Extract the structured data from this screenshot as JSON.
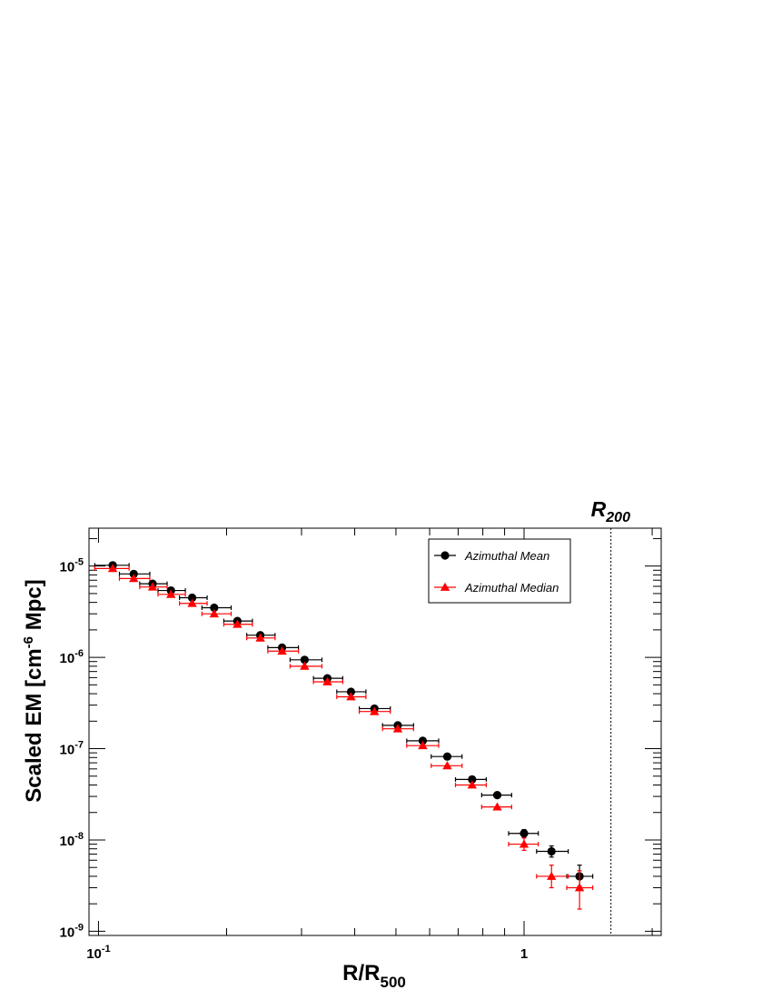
{
  "chart_data": {
    "type": "scatter",
    "xlabel": {
      "main": "R/R",
      "sub": "500"
    },
    "ylabel": {
      "pre": "Scaled EM [cm",
      "sup": "-6",
      "post": " Mpc]"
    },
    "xscale": "log",
    "yscale": "log",
    "xlim": [
      0.095,
      2.1
    ],
    "ylim": [
      9e-10,
      2.6e-05
    ],
    "grid": false,
    "legend_position": "top-right",
    "x_tick_labels": [
      {
        "value": 0.1,
        "base": "10",
        "exp": "-1"
      },
      {
        "value": 1,
        "base": "1",
        "exp": ""
      }
    ],
    "y_tick_labels": [
      {
        "value": 1e-05,
        "base": "10",
        "exp": "-5"
      },
      {
        "value": 1e-06,
        "base": "10",
        "exp": "-6"
      },
      {
        "value": 1e-07,
        "base": "10",
        "exp": "-7"
      },
      {
        "value": 1e-08,
        "base": "10",
        "exp": "-8"
      },
      {
        "value": 1e-09,
        "base": "10",
        "exp": "-9"
      }
    ],
    "vertical_line": {
      "x": 1.6,
      "label": {
        "main": "R",
        "sub": "200"
      },
      "style": "dotted"
    },
    "series": [
      {
        "name": "Azimuthal Mean",
        "color": "#000000",
        "marker": "circle",
        "points": [
          {
            "x": 0.108,
            "y": 1.02e-05,
            "xerr": [
              0.098,
              0.118
            ]
          },
          {
            "x": 0.121,
            "y": 8.2e-06,
            "xerr": [
              0.112,
              0.132
            ]
          },
          {
            "x": 0.134,
            "y": 6.4e-06,
            "xerr": [
              0.125,
              0.145
            ]
          },
          {
            "x": 0.148,
            "y": 5.4e-06,
            "xerr": [
              0.138,
              0.16
            ]
          },
          {
            "x": 0.166,
            "y": 4.5e-06,
            "xerr": [
              0.155,
              0.18
            ]
          },
          {
            "x": 0.187,
            "y": 3.5e-06,
            "xerr": [
              0.175,
              0.205
            ]
          },
          {
            "x": 0.212,
            "y": 2.5e-06,
            "xerr": [
              0.197,
              0.23
            ]
          },
          {
            "x": 0.24,
            "y": 1.75e-06,
            "xerr": [
              0.223,
              0.26
            ]
          },
          {
            "x": 0.27,
            "y": 1.28e-06,
            "xerr": [
              0.25,
              0.295
            ]
          },
          {
            "x": 0.305,
            "y": 9.4e-07,
            "xerr": [
              0.282,
              0.335
            ]
          },
          {
            "x": 0.345,
            "y": 5.9e-07,
            "xerr": [
              0.32,
              0.375
            ]
          },
          {
            "x": 0.392,
            "y": 4.2e-07,
            "xerr": [
              0.363,
              0.425
            ]
          },
          {
            "x": 0.445,
            "y": 2.75e-07,
            "xerr": [
              0.41,
              0.485
            ]
          },
          {
            "x": 0.505,
            "y": 1.8e-07,
            "xerr": [
              0.465,
              0.55
            ]
          },
          {
            "x": 0.578,
            "y": 1.22e-07,
            "xerr": [
              0.53,
              0.63
            ]
          },
          {
            "x": 0.66,
            "y": 8.2e-08,
            "xerr": [
              0.605,
              0.715
            ]
          },
          {
            "x": 0.755,
            "y": 4.6e-08,
            "xerr": [
              0.69,
              0.815
            ]
          },
          {
            "x": 0.865,
            "y": 3.1e-08,
            "xerr": [
              0.795,
              0.935
            ]
          },
          {
            "x": 1.0,
            "y": 1.18e-08,
            "xerr": [
              0.92,
              1.08
            ],
            "yerr": [
              1.06e-08,
              1.3e-08
            ]
          },
          {
            "x": 1.16,
            "y": 7.5e-09,
            "xerr": [
              1.07,
              1.27
            ],
            "yerr": [
              6.5e-09,
              8.6e-09
            ]
          },
          {
            "x": 1.35,
            "y": 4e-09,
            "xerr": [
              1.26,
              1.45
            ],
            "yerr": [
              3.1e-09,
              5.3e-09
            ]
          }
        ]
      },
      {
        "name": "Azimuthal Median",
        "color": "#ff0000",
        "marker": "triangle",
        "points": [
          {
            "x": 0.108,
            "y": 9.4e-06,
            "xerr": [
              0.098,
              0.118
            ]
          },
          {
            "x": 0.121,
            "y": 7.3e-06,
            "xerr": [
              0.112,
              0.132
            ]
          },
          {
            "x": 0.134,
            "y": 5.9e-06,
            "xerr": [
              0.125,
              0.145
            ]
          },
          {
            "x": 0.148,
            "y": 4.9e-06,
            "xerr": [
              0.138,
              0.16
            ]
          },
          {
            "x": 0.166,
            "y": 3.9e-06,
            "xerr": [
              0.155,
              0.18
            ]
          },
          {
            "x": 0.187,
            "y": 3e-06,
            "xerr": [
              0.175,
              0.205
            ]
          },
          {
            "x": 0.212,
            "y": 2.3e-06,
            "xerr": [
              0.197,
              0.23
            ]
          },
          {
            "x": 0.24,
            "y": 1.63e-06,
            "xerr": [
              0.223,
              0.26
            ]
          },
          {
            "x": 0.27,
            "y": 1.17e-06,
            "xerr": [
              0.25,
              0.295
            ]
          },
          {
            "x": 0.305,
            "y": 8e-07,
            "xerr": [
              0.282,
              0.335
            ]
          },
          {
            "x": 0.345,
            "y": 5.4e-07,
            "xerr": [
              0.32,
              0.375
            ]
          },
          {
            "x": 0.392,
            "y": 3.7e-07,
            "xerr": [
              0.363,
              0.425
            ]
          },
          {
            "x": 0.445,
            "y": 2.55e-07,
            "xerr": [
              0.41,
              0.485
            ]
          },
          {
            "x": 0.505,
            "y": 1.65e-07,
            "xerr": [
              0.465,
              0.55
            ]
          },
          {
            "x": 0.578,
            "y": 1.08e-07,
            "xerr": [
              0.53,
              0.63
            ]
          },
          {
            "x": 0.66,
            "y": 6.5e-08,
            "xerr": [
              0.605,
              0.715
            ]
          },
          {
            "x": 0.755,
            "y": 4e-08,
            "xerr": [
              0.69,
              0.815
            ]
          },
          {
            "x": 0.865,
            "y": 2.3e-08,
            "xerr": [
              0.795,
              0.935
            ]
          },
          {
            "x": 1.0,
            "y": 9e-09,
            "xerr": [
              0.92,
              1.08
            ],
            "yerr": [
              7.7e-09,
              1.05e-08
            ]
          },
          {
            "x": 1.16,
            "y": 4e-09,
            "xerr": [
              1.07,
              1.27
            ],
            "yerr": [
              3e-09,
              5.3e-09
            ]
          },
          {
            "x": 1.35,
            "y": 3e-09,
            "xerr": [
              1.26,
              1.45
            ],
            "yerr": [
              1.75e-09,
              4.6e-09
            ]
          }
        ]
      }
    ]
  }
}
